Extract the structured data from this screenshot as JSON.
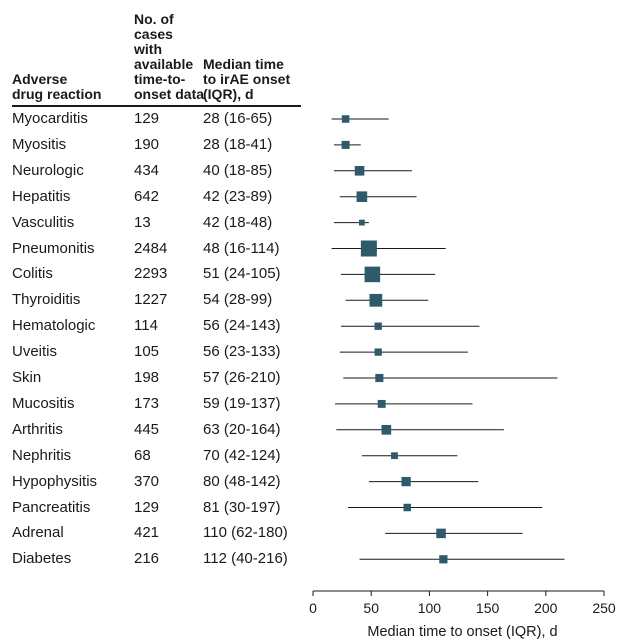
{
  "table": {
    "headers": {
      "reaction": "Adverse\ndrug reaction",
      "cases": "No. of\ncases with\navailable\ntime-to-\nonset data",
      "median": "Median time\nto irAE onset\n(IQR), d"
    },
    "rows": [
      {
        "name": "Myocarditis",
        "n": "129",
        "median_text": "28 (16-65)"
      },
      {
        "name": "Myositis",
        "n": "190",
        "median_text": "28 (18-41)"
      },
      {
        "name": "Neurologic",
        "n": "434",
        "median_text": "40 (18-85)"
      },
      {
        "name": "Hepatitis",
        "n": "642",
        "median_text": "42 (23-89)"
      },
      {
        "name": "Vasculitis",
        "n": "13",
        "median_text": "42 (18-48)"
      },
      {
        "name": "Pneumonitis",
        "n": "2484",
        "median_text": "48 (16-114)"
      },
      {
        "name": "Colitis",
        "n": "2293",
        "median_text": "51 (24-105)"
      },
      {
        "name": "Thyroiditis",
        "n": "1227",
        "median_text": "54 (28-99)"
      },
      {
        "name": "Hematologic",
        "n": "114",
        "median_text": "56 (24-143)"
      },
      {
        "name": "Uveitis",
        "n": "105",
        "median_text": "56 (23-133)"
      },
      {
        "name": "Skin",
        "n": "198",
        "median_text": "57 (26-210)"
      },
      {
        "name": "Mucositis",
        "n": "173",
        "median_text": "59 (19-137)"
      },
      {
        "name": "Arthritis",
        "n": "445",
        "median_text": "63 (20-164)"
      },
      {
        "name": "Nephritis",
        "n": "68",
        "median_text": "70 (42-124)"
      },
      {
        "name": "Hypophysitis",
        "n": "370",
        "median_text": "80 (48-142)"
      },
      {
        "name": "Pancreatitis",
        "n": "129",
        "median_text": "81 (30-197)"
      },
      {
        "name": "Adrenal",
        "n": "421",
        "median_text": "110 (62-180)"
      },
      {
        "name": "Diabetes",
        "n": "216",
        "median_text": "112 (40-216)"
      }
    ]
  },
  "chart_data": {
    "type": "forest",
    "xlabel": "Median time to onset (IQR), d",
    "xlim": [
      0,
      250
    ],
    "xticks": [
      0,
      50,
      100,
      150,
      200,
      250
    ],
    "grid": false,
    "marker_color": "#2e5a6b",
    "line_color": "#1a1a1a",
    "points": [
      {
        "label": "Myocarditis",
        "n": 129,
        "median": 28,
        "q1": 16,
        "q3": 65
      },
      {
        "label": "Myositis",
        "n": 190,
        "median": 28,
        "q1": 18,
        "q3": 41
      },
      {
        "label": "Neurologic",
        "n": 434,
        "median": 40,
        "q1": 18,
        "q3": 85
      },
      {
        "label": "Hepatitis",
        "n": 642,
        "median": 42,
        "q1": 23,
        "q3": 89
      },
      {
        "label": "Vasculitis",
        "n": 13,
        "median": 42,
        "q1": 18,
        "q3": 48
      },
      {
        "label": "Pneumonitis",
        "n": 2484,
        "median": 48,
        "q1": 16,
        "q3": 114
      },
      {
        "label": "Colitis",
        "n": 2293,
        "median": 51,
        "q1": 24,
        "q3": 105
      },
      {
        "label": "Thyroiditis",
        "n": 1227,
        "median": 54,
        "q1": 28,
        "q3": 99
      },
      {
        "label": "Hematologic",
        "n": 114,
        "median": 56,
        "q1": 24,
        "q3": 143
      },
      {
        "label": "Uveitis",
        "n": 105,
        "median": 56,
        "q1": 23,
        "q3": 133
      },
      {
        "label": "Skin",
        "n": 198,
        "median": 57,
        "q1": 26,
        "q3": 210
      },
      {
        "label": "Mucositis",
        "n": 173,
        "median": 59,
        "q1": 19,
        "q3": 137
      },
      {
        "label": "Arthritis",
        "n": 445,
        "median": 63,
        "q1": 20,
        "q3": 164
      },
      {
        "label": "Nephritis",
        "n": 68,
        "median": 70,
        "q1": 42,
        "q3": 124
      },
      {
        "label": "Hypophysitis",
        "n": 370,
        "median": 80,
        "q1": 48,
        "q3": 142
      },
      {
        "label": "Pancreatitis",
        "n": 129,
        "median": 81,
        "q1": 30,
        "q3": 197
      },
      {
        "label": "Adrenal",
        "n": 421,
        "median": 110,
        "q1": 62,
        "q3": 180
      },
      {
        "label": "Diabetes",
        "n": 216,
        "median": 112,
        "q1": 40,
        "q3": 216
      }
    ]
  }
}
